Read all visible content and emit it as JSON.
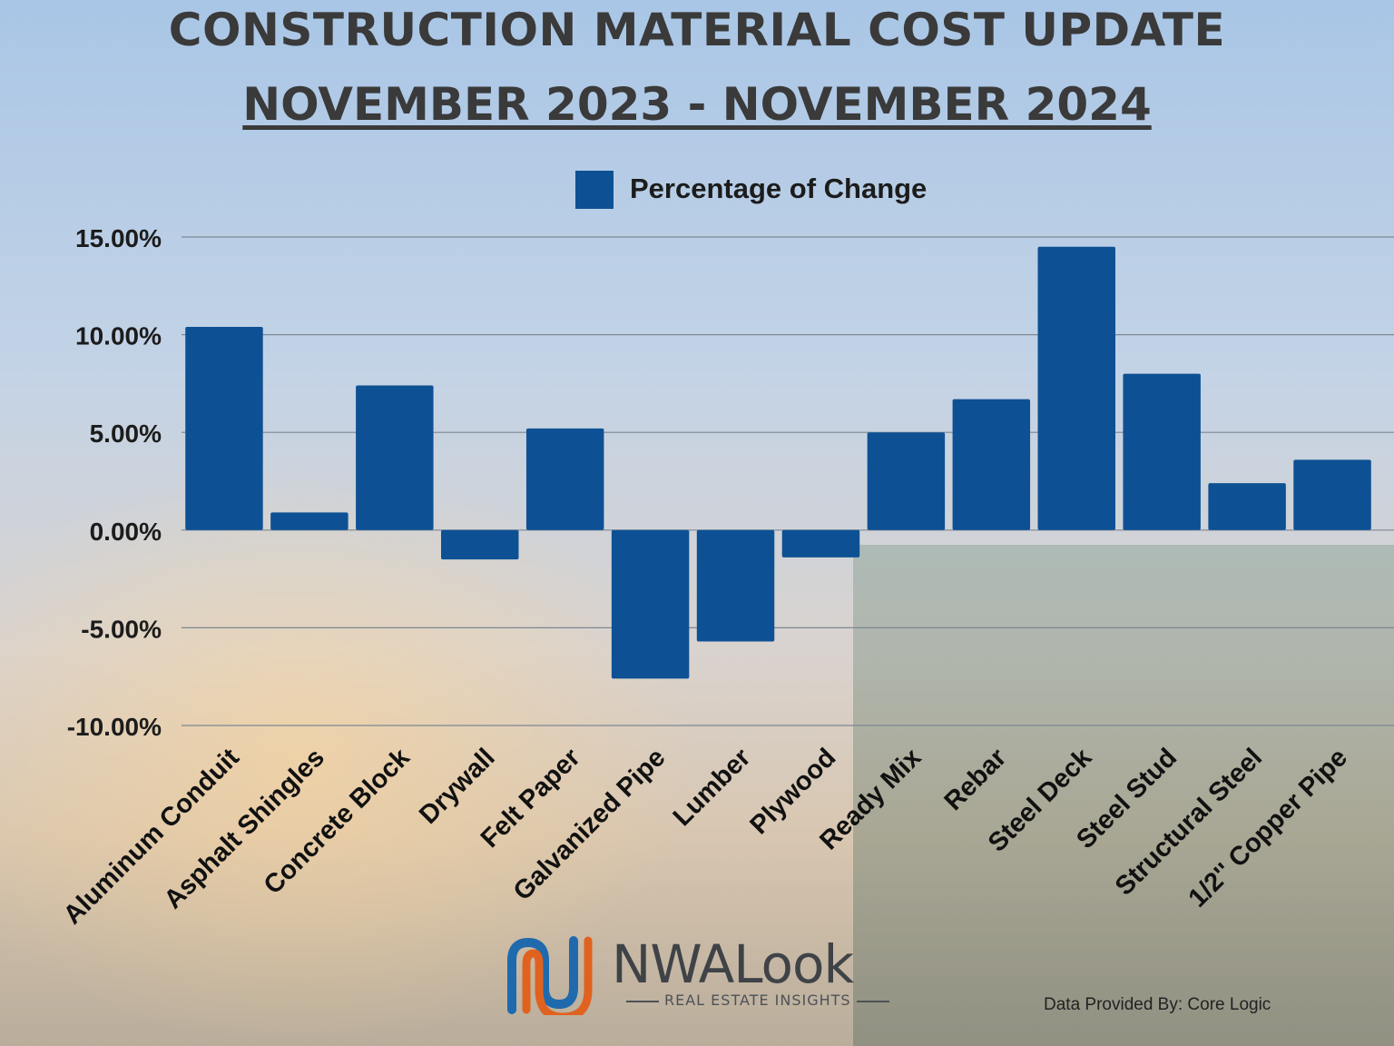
{
  "title": "CONSTRUCTION MATERIAL COST UPDATE",
  "subtitle": "NOVEMBER 2023 - NOVEMBER 2024",
  "colors": {
    "bar": "#0d5194",
    "grid": "#7d8794",
    "text": "#1c1c1c",
    "logo_blue": "#1f6aad",
    "logo_orange": "#e0621f"
  },
  "chart_data": {
    "type": "bar",
    "series": [
      {
        "name": "Percentage of Change",
        "values": [
          10.4,
          0.9,
          7.4,
          -1.5,
          5.2,
          -7.6,
          -5.7,
          -1.4,
          5.0,
          6.7,
          14.5,
          8.0,
          2.4,
          3.6
        ]
      }
    ],
    "categories": [
      "Aluminum Conduit",
      "Asphalt Shingles",
      "Concrete Block",
      "Drywall",
      "Felt Paper",
      "Galvanized Pipe",
      "Lumber",
      "Plywood",
      "Ready Mix",
      "Rebar",
      "Steel Deck",
      "Steel Stud",
      "Structural Steel",
      "1/2'' Copper Pipe"
    ],
    "yticks": [
      "15.00%",
      "10.00%",
      "5.00%",
      "0.00%",
      "-5.00%",
      "-10.00%"
    ],
    "ytick_values": [
      15,
      10,
      5,
      0,
      -5,
      -10
    ],
    "ylim": [
      -10,
      15
    ],
    "legend": "top-center",
    "grid": true
  },
  "brand": {
    "name": "NWALook",
    "tagline": "REAL ESTATE INSIGHTS"
  },
  "source": "Data Provided By: Core Logic"
}
